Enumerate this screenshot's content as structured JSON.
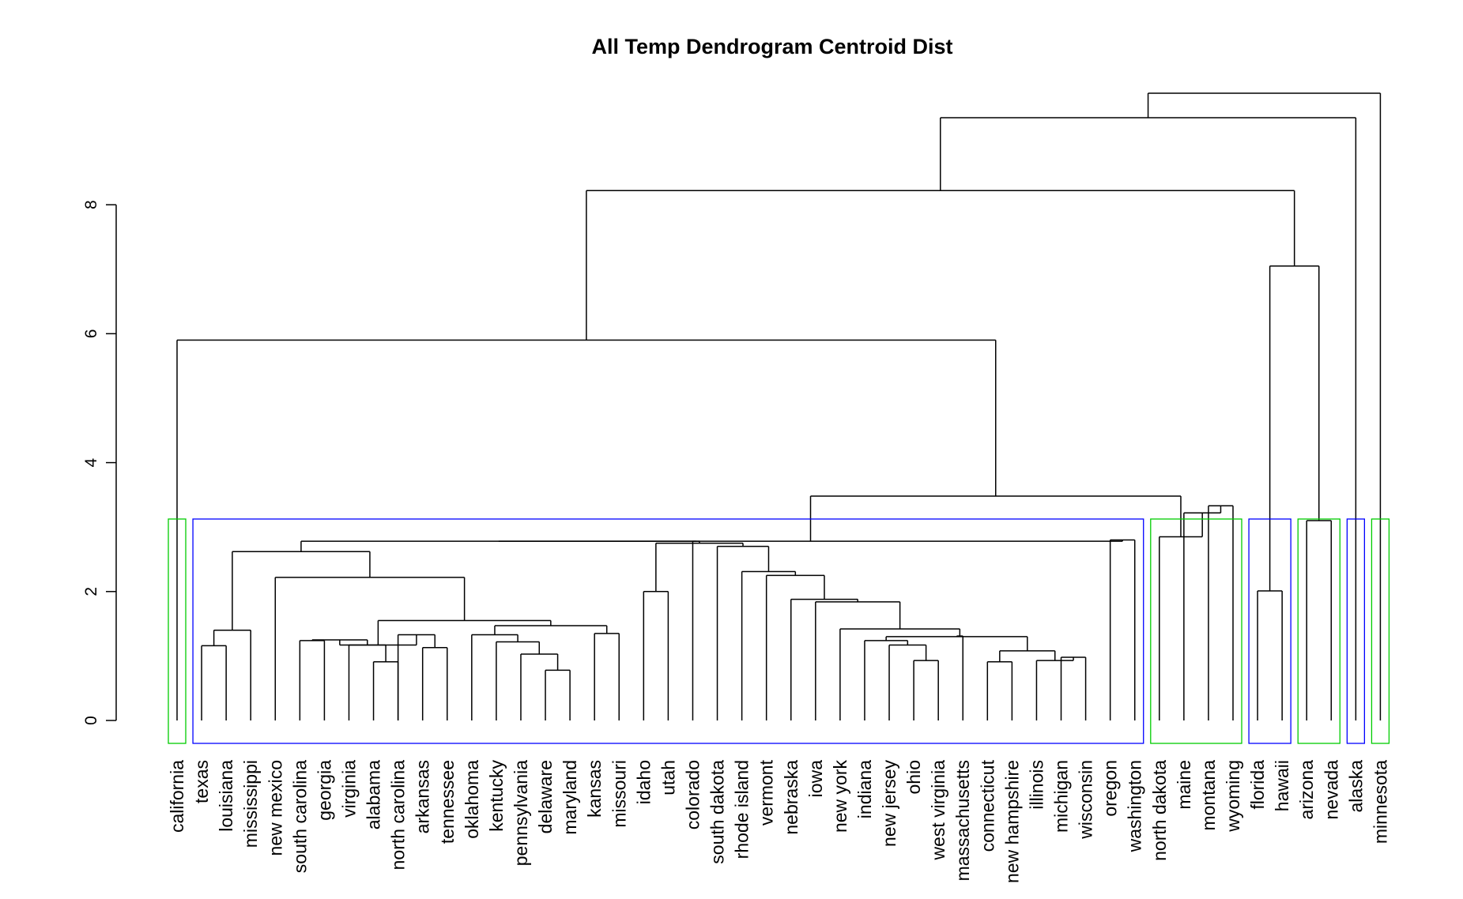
{
  "chart_data": {
    "type": "dendrogram",
    "title": "All Temp Dendrogram Centroid Dist",
    "xlabel": "",
    "ylabel": "",
    "ylim": [
      0,
      10.0
    ],
    "y_ticks": [
      0,
      2,
      4,
      6,
      8
    ],
    "leaves": [
      "california",
      "texas",
      "louisiana",
      "mississippi",
      "new mexico",
      "south carolina",
      "georgia",
      "virginia",
      "alabama",
      "north carolina",
      "arkansas",
      "tennessee",
      "oklahoma",
      "kentucky",
      "pennsylvania",
      "delaware",
      "maryland",
      "kansas",
      "missouri",
      "idaho",
      "utah",
      "colorado",
      "south dakota",
      "rhode island",
      "vermont",
      "nebraska",
      "iowa",
      "new york",
      "indiana",
      "new jersey",
      "ohio",
      "west virginia",
      "massachusetts",
      "connecticut",
      "new hampshire",
      "illinois",
      "michigan",
      "wisconsin",
      "oregon",
      "washington",
      "north dakota",
      "maine",
      "montana",
      "wyoming",
      "florida",
      "hawaii",
      "arizona",
      "nevada",
      "alaska",
      "minnesota"
    ],
    "merges": [
      {
        "a": "L15",
        "b": "L16",
        "height": 0.78
      },
      {
        "a": "L9",
        "b": "L8",
        "height": 0.91
      },
      {
        "a": "L31",
        "b": "L30",
        "height": 0.93
      },
      {
        "a": "L34",
        "b": "L33",
        "height": 0.91
      },
      {
        "a": "L37",
        "b": "L36",
        "height": 0.98
      },
      {
        "a": "M4",
        "b": "L35",
        "height": 0.93
      },
      {
        "a": "M0",
        "b": "L14",
        "height": 1.03
      },
      {
        "a": "L11",
        "b": "L10",
        "height": 1.13
      },
      {
        "a": "M1",
        "b": "L7",
        "height": 1.17
      },
      {
        "a": "L1",
        "b": "L2",
        "height": 1.16
      },
      {
        "a": "M2",
        "b": "L29",
        "height": 1.17
      },
      {
        "a": "M5",
        "b": "M3",
        "height": 1.08
      },
      {
        "a": "M6",
        "b": "L13",
        "height": 1.22
      },
      {
        "a": "L5",
        "b": "L6",
        "height": 1.24
      },
      {
        "a": "M8",
        "b": "M13",
        "height": 1.25
      },
      {
        "a": "M10",
        "b": "L28",
        "height": 1.24
      },
      {
        "a": "M7",
        "b": "L9",
        "height": 1.33
      },
      {
        "a": "M14",
        "b": "M16",
        "height": 1.17
      },
      {
        "a": "M9",
        "b": "L3",
        "height": 1.4
      },
      {
        "a": "M15",
        "b": "M11",
        "height": 1.3
      },
      {
        "a": "M12",
        "b": "L12",
        "height": 1.33
      },
      {
        "a": "L17",
        "b": "L18",
        "height": 1.35
      },
      {
        "a": "M19",
        "b": "L32",
        "height": 1.31
      },
      {
        "a": "M22",
        "b": "L27",
        "height": 1.42
      },
      {
        "a": "M20",
        "b": "M21",
        "height": 1.47
      },
      {
        "a": "M17",
        "b": "M24",
        "height": 1.55
      },
      {
        "a": "M23",
        "b": "L26",
        "height": 1.84
      },
      {
        "a": "M26",
        "b": "L25",
        "height": 1.88
      },
      {
        "a": "L19",
        "b": "L20",
        "height": 2.0
      },
      {
        "a": "L44",
        "b": "L45",
        "height": 2.01
      },
      {
        "a": "M27",
        "b": "L24",
        "height": 2.25
      },
      {
        "a": "M25",
        "b": "L4",
        "height": 2.22
      },
      {
        "a": "M30",
        "b": "L23",
        "height": 2.31
      },
      {
        "a": "M31",
        "b": "M18",
        "height": 2.62
      },
      {
        "a": "M32",
        "b": "L22",
        "height": 2.7
      },
      {
        "a": "M28",
        "b": "M34",
        "height": 2.75
      },
      {
        "a": "M35",
        "b": "L21",
        "height": 2.78
      },
      {
        "a": "M33",
        "b": "M36",
        "height": 2.78
      },
      {
        "a": "L38",
        "b": "L39",
        "height": 2.8
      },
      {
        "a": "M37",
        "b": "M38",
        "height": 2.78
      },
      {
        "a": "L42",
        "b": "L43",
        "height": 3.33
      },
      {
        "a": "M40",
        "b": "L41",
        "height": 3.22
      },
      {
        "a": "M41",
        "b": "L40",
        "height": 2.85
      },
      {
        "a": "L46",
        "b": "L47",
        "height": 3.1
      },
      {
        "a": "M39",
        "b": "M42",
        "height": 3.48
      },
      {
        "a": "M44",
        "b": "L0",
        "height": 5.9
      },
      {
        "a": "M29",
        "b": "M43",
        "height": 7.05
      },
      {
        "a": "M45",
        "b": "M46",
        "height": 8.22
      },
      {
        "a": "M47",
        "b": "L48",
        "height": 9.35
      },
      {
        "a": "M48",
        "b": "L49",
        "height": 9.9
      }
    ],
    "clusters": [
      {
        "start": 0,
        "end": 0,
        "color": "#00cc00"
      },
      {
        "start": 1,
        "end": 39,
        "color": "#0000ff"
      },
      {
        "start": 40,
        "end": 43,
        "color": "#00cc00"
      },
      {
        "start": 44,
        "end": 45,
        "color": "#0000ff"
      },
      {
        "start": 46,
        "end": 47,
        "color": "#00cc00"
      },
      {
        "start": 48,
        "end": 48,
        "color": "#0000ff"
      },
      {
        "start": 49,
        "end": 49,
        "color": "#00cc00"
      }
    ]
  }
}
